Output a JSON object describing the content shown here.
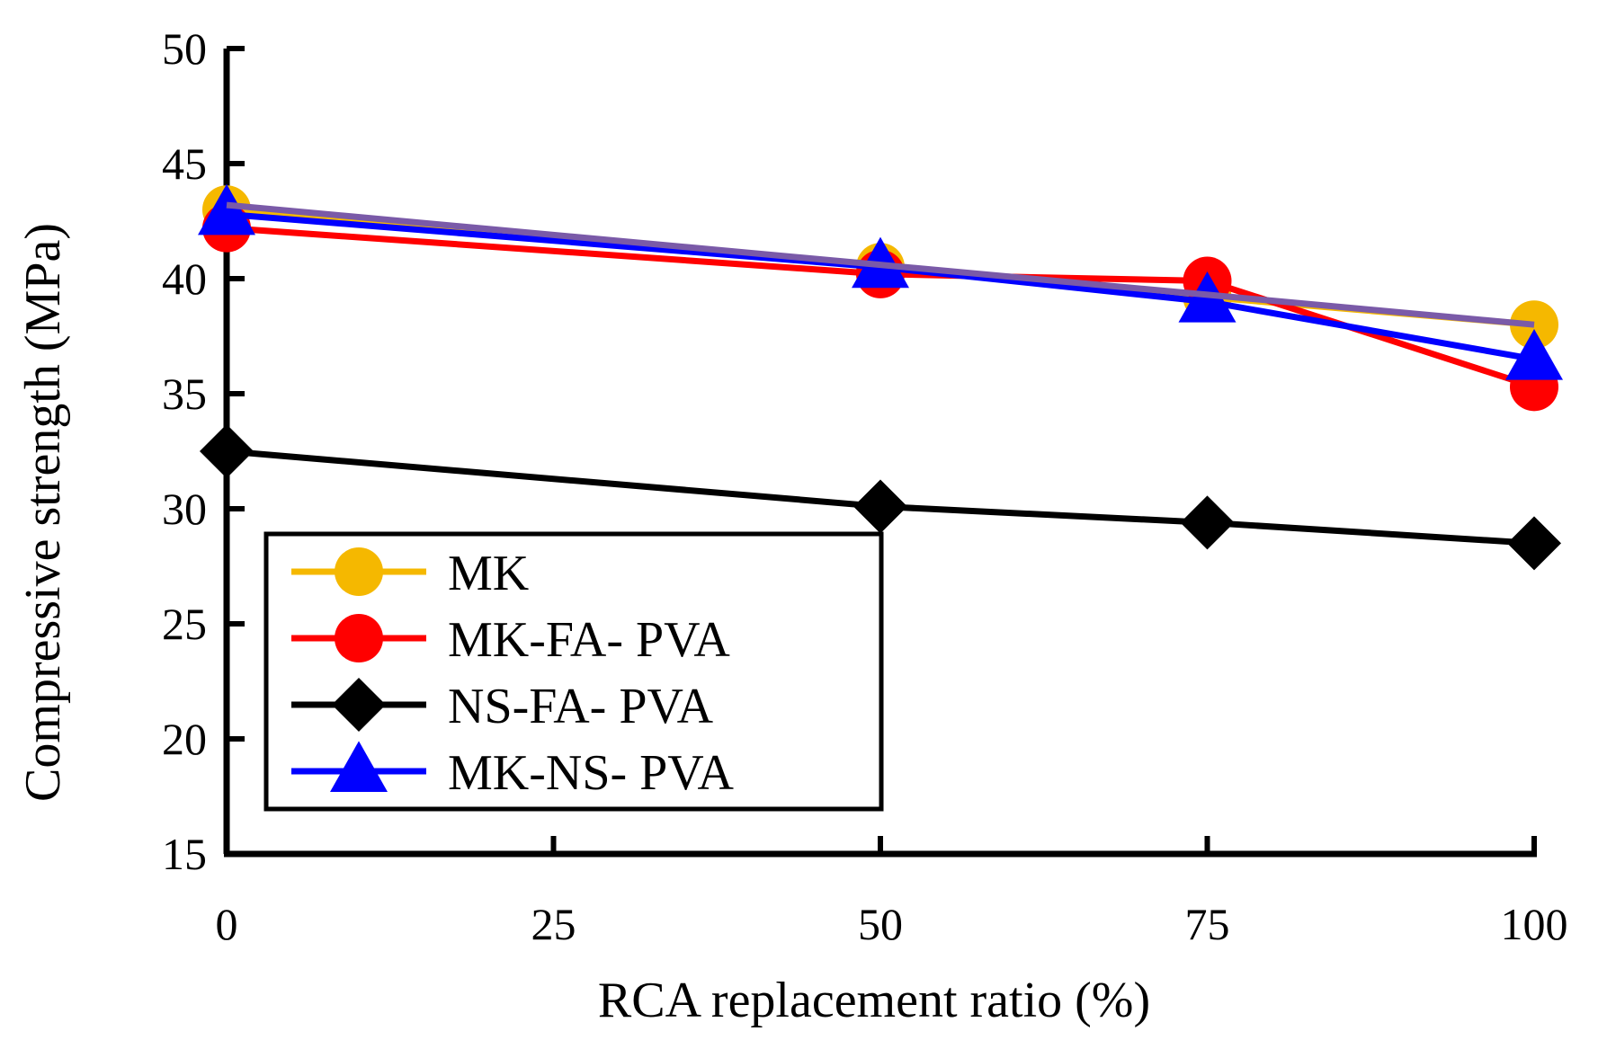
{
  "chart_data": {
    "type": "line",
    "title": "",
    "xlabel": "RCA replacement ratio (%)",
    "ylabel": "Compressive strength (MPa)",
    "xlim": [
      0,
      100
    ],
    "ylim": [
      15,
      50
    ],
    "xticks": [
      0,
      25,
      50,
      75,
      100
    ],
    "yticks": [
      15,
      20,
      25,
      30,
      35,
      40,
      45,
      50
    ],
    "x": [
      0,
      50,
      75,
      100
    ],
    "grid": false,
    "legend_position": "bottom-left",
    "series": [
      {
        "name": "MK",
        "marker": "circle",
        "color": "#f5b800",
        "values": [
          43.0,
          40.5,
          39.2,
          38.0
        ]
      },
      {
        "name": "MK-FA- PVA",
        "marker": "circle",
        "color": "#ff0000",
        "values": [
          42.2,
          40.2,
          39.9,
          35.3
        ]
      },
      {
        "name": "NS-FA- PVA",
        "marker": "diamond",
        "color": "#000000",
        "values": [
          32.5,
          30.1,
          29.4,
          28.5
        ]
      },
      {
        "name": "MK-NS- PVA",
        "marker": "triangle",
        "color": "#0000ff",
        "values": [
          42.8,
          40.5,
          39.0,
          36.5
        ]
      }
    ],
    "trend_line": {
      "color": "#7a5aa8",
      "values": [
        43.2,
        40.6,
        39.3,
        38.0
      ]
    }
  }
}
